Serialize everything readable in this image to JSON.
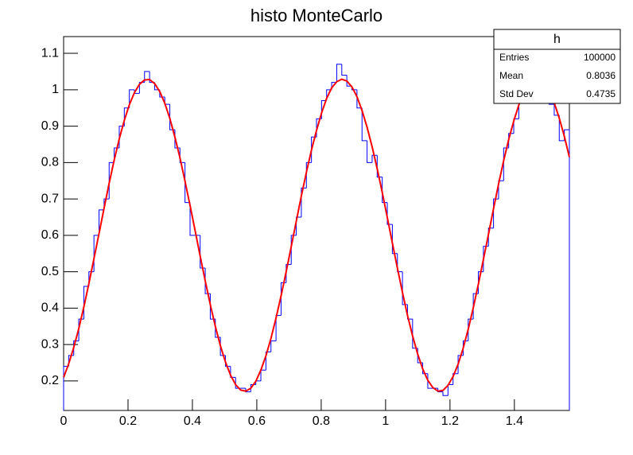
{
  "chart_data": {
    "type": "histogram",
    "title": "histo MonteCarlo",
    "color": "#0000ff",
    "bins": [
      0,
      0.0157,
      0.0314,
      0.0471,
      0.0628,
      0.0785,
      0.0942,
      0.11,
      0.1257,
      0.1414,
      0.1571,
      0.1728,
      0.1885,
      0.2042,
      0.2199,
      0.2356,
      0.2513,
      0.267,
      0.2827,
      0.2985,
      0.3142,
      0.3299,
      0.3456,
      0.3613,
      0.377,
      0.3927,
      0.4084,
      0.4241,
      0.4398,
      0.4555,
      0.4712,
      0.4869,
      0.5027,
      0.5184,
      0.5341,
      0.5498,
      0.5655,
      0.5812,
      0.5969,
      0.6126,
      0.6283,
      0.644,
      0.6597,
      0.6754,
      0.6912,
      0.7069,
      0.7226,
      0.7383,
      0.754,
      0.7697,
      0.7854,
      0.8011,
      0.8168,
      0.8325,
      0.8482,
      0.8639,
      0.8796,
      0.8954,
      0.9111,
      0.9268,
      0.9425,
      0.9582,
      0.9739,
      0.9896,
      1.0053,
      1.021,
      1.0367,
      1.0524,
      1.0681,
      1.0838,
      1.0996,
      1.1153,
      1.131,
      1.1467,
      1.1624,
      1.1781,
      1.1938,
      1.2095,
      1.2252,
      1.2409,
      1.2566,
      1.2723,
      1.2881,
      1.3038,
      1.3195,
      1.3352,
      1.3509,
      1.3666,
      1.3823,
      1.398,
      1.4137,
      1.4294,
      1.4451,
      1.4608,
      1.4765,
      1.4923,
      1.508,
      1.5237,
      1.5394,
      1.5551,
      1.5708
    ],
    "values": [
      0.24,
      0.27,
      0.31,
      0.37,
      0.46,
      0.5,
      0.6,
      0.67,
      0.7,
      0.8,
      0.84,
      0.9,
      0.95,
      1.0,
      0.99,
      1.02,
      1.05,
      1.02,
      1.0,
      0.98,
      0.96,
      0.89,
      0.84,
      0.8,
      0.69,
      0.6,
      0.6,
      0.51,
      0.44,
      0.37,
      0.32,
      0.27,
      0.24,
      0.21,
      0.18,
      0.18,
      0.17,
      0.19,
      0.2,
      0.23,
      0.28,
      0.31,
      0.38,
      0.47,
      0.52,
      0.6,
      0.65,
      0.73,
      0.8,
      0.87,
      0.92,
      0.97,
      1.0,
      1.02,
      1.07,
      1.04,
      1.01,
      1.0,
      0.95,
      0.86,
      0.8,
      0.82,
      0.76,
      0.69,
      0.63,
      0.55,
      0.5,
      0.41,
      0.37,
      0.29,
      0.25,
      0.22,
      0.18,
      0.18,
      0.17,
      0.16,
      0.19,
      0.22,
      0.27,
      0.31,
      0.37,
      0.44,
      0.5,
      0.57,
      0.62,
      0.7,
      0.75,
      0.84,
      0.88,
      0.92,
      0.97,
      0.99,
      1.01,
      1.02,
      1.01,
      0.99,
      0.96,
      0.93,
      0.86,
      0.89
    ],
    "fit": {
      "type": "line",
      "color": "#ff0000",
      "values": [
        0.21,
        0.247,
        0.292,
        0.344,
        0.403,
        0.468,
        0.536,
        0.605,
        0.675,
        0.743,
        0.807,
        0.865,
        0.916,
        0.959,
        0.992,
        1.015,
        1.027,
        1.028,
        1.017,
        0.995,
        0.963,
        0.921,
        0.87,
        0.813,
        0.749,
        0.682,
        0.613,
        0.543,
        0.475,
        0.41,
        0.35,
        0.297,
        0.252,
        0.216,
        0.19,
        0.175,
        0.172,
        0.18,
        0.199,
        0.23,
        0.269,
        0.317,
        0.373,
        0.434,
        0.5,
        0.569,
        0.639,
        0.708,
        0.773,
        0.834,
        0.888,
        0.936,
        0.976,
        1.005,
        1.022,
        1.029,
        1.024,
        1.008,
        0.981,
        0.943,
        0.897,
        0.843,
        0.783,
        0.718,
        0.649,
        0.579,
        0.51,
        0.443,
        0.38,
        0.324,
        0.274,
        0.233,
        0.202,
        0.182,
        0.172,
        0.174,
        0.188,
        0.212,
        0.246,
        0.29,
        0.342,
        0.401,
        0.466,
        0.534,
        0.603,
        0.673,
        0.741,
        0.805,
        0.863,
        0.914,
        0.958,
        0.991,
        1.014,
        1.027,
        1.028,
        1.017,
        0.996,
        0.964,
        0.922,
        0.872,
        0.815
      ]
    },
    "xlim": [
      0,
      1.5708
    ],
    "ylim": [
      0.119,
      1.146
    ],
    "xticks": [
      0,
      0.2,
      0.4,
      0.6,
      0.8,
      1,
      1.2,
      1.4
    ],
    "yticks": [
      0.2,
      0.3,
      0.4,
      0.5,
      0.6,
      0.7,
      0.8,
      0.9,
      1,
      1.1
    ],
    "stats": {
      "title": "h",
      "rows": [
        [
          "Entries",
          "100000"
        ],
        [
          "Mean",
          "0.8036"
        ],
        [
          "Std Dev",
          "0.4735"
        ]
      ]
    }
  }
}
